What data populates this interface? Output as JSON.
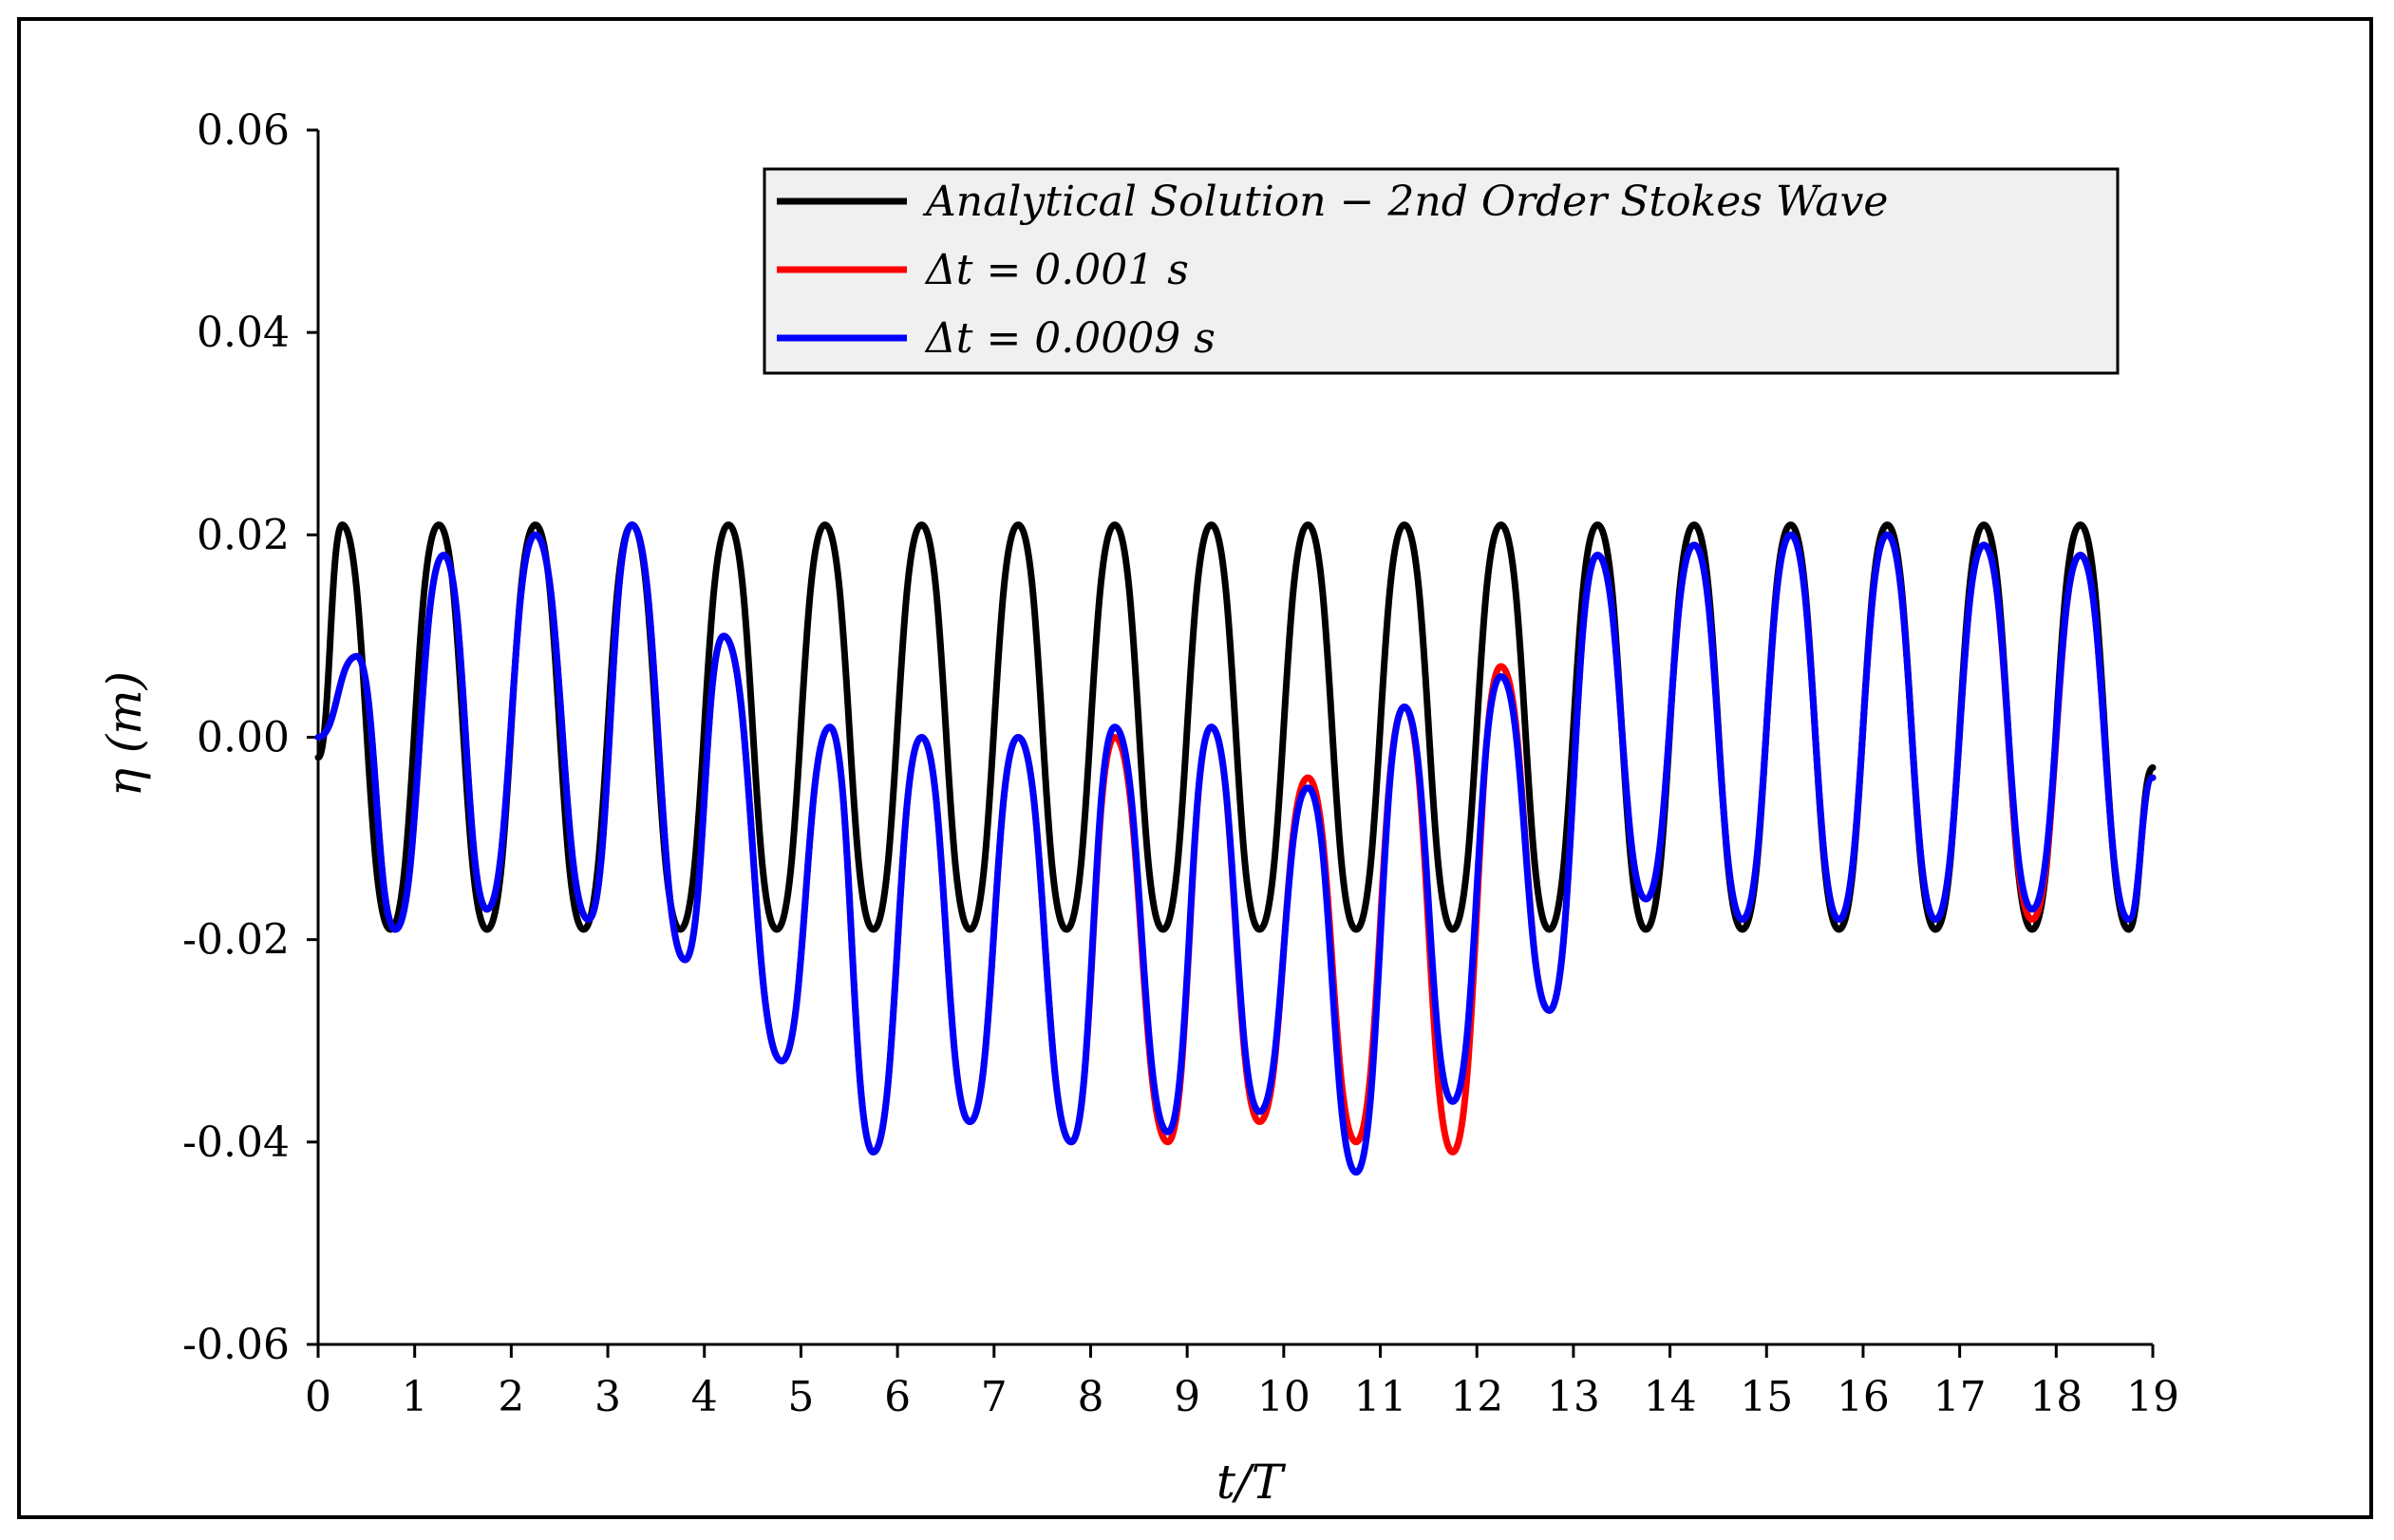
{
  "chart_data": {
    "type": "line",
    "title": "",
    "xlabel": "t/T",
    "ylabel": "η (m)",
    "xlim": [
      0,
      19
    ],
    "ylim": [
      -0.06,
      0.06
    ],
    "xticks": [
      0,
      1,
      2,
      3,
      4,
      5,
      6,
      7,
      8,
      9,
      10,
      11,
      12,
      13,
      14,
      15,
      16,
      17,
      18,
      19
    ],
    "xtick_labels": [
      "0",
      "1",
      "2",
      "3",
      "4",
      "5",
      "6",
      "7",
      "8",
      "9",
      "10",
      "11",
      "12",
      "13",
      "14",
      "15",
      "16",
      "17",
      "18",
      "19"
    ],
    "yticks": [
      -0.06,
      -0.04,
      -0.02,
      0.0,
      0.02,
      0.04,
      0.06
    ],
    "ytick_labels": [
      "-0.06",
      "-0.04",
      "-0.02",
      "0.00",
      "0.02",
      "0.04",
      "0.06"
    ],
    "grid": false,
    "legend_position": "top-right",
    "series": [
      {
        "name": "Analytical Solution − 2nd Order Stokes Wave",
        "color": "#000000",
        "x": [
          0,
          0.25,
          0.75,
          1.25,
          1.75,
          2.25,
          2.75,
          3.25,
          3.75,
          4.25,
          4.75,
          5.25,
          5.75,
          6.25,
          6.75,
          7.25,
          7.75,
          8.25,
          8.75,
          9.25,
          9.75,
          10.25,
          10.75,
          11.25,
          11.75,
          12.25,
          12.75,
          13.25,
          13.75,
          14.25,
          14.75,
          15.25,
          15.75,
          16.25,
          16.75,
          17.25,
          17.75,
          18.25,
          18.75,
          19
        ],
        "y": [
          -0.002,
          0.021,
          -0.019,
          0.021,
          -0.019,
          0.021,
          -0.019,
          0.021,
          -0.019,
          0.021,
          -0.019,
          0.021,
          -0.019,
          0.021,
          -0.019,
          0.021,
          -0.019,
          0.021,
          -0.019,
          0.021,
          -0.019,
          0.021,
          -0.019,
          0.021,
          -0.019,
          0.021,
          -0.019,
          0.021,
          -0.019,
          0.021,
          -0.019,
          0.021,
          -0.019,
          0.021,
          -0.019,
          0.021,
          -0.019,
          0.021,
          -0.019,
          -0.003
        ]
      },
      {
        "name": "Δt = 0.001 s",
        "color": "#ff0000",
        "x": [
          0,
          0.4,
          0.8,
          1.3,
          1.75,
          2.25,
          2.8,
          3.25,
          3.8,
          4.2,
          4.8,
          5.3,
          5.75,
          6.25,
          6.75,
          7.25,
          7.8,
          8.25,
          8.8,
          9.25,
          9.75,
          10.25,
          10.75,
          11.25,
          11.75,
          12.25,
          12.75,
          13.25,
          13.75,
          14.25,
          14.75,
          15.25,
          15.75,
          16.25,
          16.75,
          17.25,
          17.75,
          18.25,
          18.75,
          19
        ],
        "y": [
          0.0,
          0.008,
          -0.019,
          0.018,
          -0.017,
          0.02,
          -0.018,
          0.021,
          -0.022,
          0.01,
          -0.032,
          0.001,
          -0.041,
          0.0,
          -0.038,
          0.0,
          -0.04,
          0.0,
          -0.04,
          0.001,
          -0.038,
          -0.004,
          -0.04,
          0.003,
          -0.041,
          0.007,
          -0.027,
          0.018,
          -0.016,
          0.019,
          -0.018,
          0.02,
          -0.018,
          0.02,
          -0.018,
          0.019,
          -0.018,
          0.018,
          -0.018,
          -0.004
        ]
      },
      {
        "name": "Δt = 0.0009 s",
        "color": "#0000ff",
        "x": [
          0,
          0.4,
          0.8,
          1.3,
          1.75,
          2.25,
          2.8,
          3.25,
          3.8,
          4.2,
          4.8,
          5.3,
          5.75,
          6.25,
          6.75,
          7.25,
          7.8,
          8.25,
          8.8,
          9.25,
          9.75,
          10.25,
          10.75,
          11.25,
          11.75,
          12.25,
          12.75,
          13.25,
          13.75,
          14.25,
          14.75,
          15.25,
          15.75,
          16.25,
          16.75,
          17.25,
          17.75,
          18.25,
          18.75,
          19
        ],
        "y": [
          0.0,
          0.008,
          -0.019,
          0.018,
          -0.017,
          0.02,
          -0.018,
          0.021,
          -0.022,
          0.01,
          -0.032,
          0.001,
          -0.041,
          0.0,
          -0.038,
          0.0,
          -0.04,
          0.001,
          -0.039,
          0.001,
          -0.037,
          -0.005,
          -0.043,
          0.003,
          -0.036,
          0.006,
          -0.027,
          0.018,
          -0.016,
          0.019,
          -0.018,
          0.02,
          -0.018,
          0.02,
          -0.018,
          0.019,
          -0.017,
          0.018,
          -0.018,
          -0.004
        ]
      }
    ],
    "legend": [
      {
        "label": "Analytical Solution − 2nd Order Stokes Wave",
        "color": "#000000"
      },
      {
        "label": "Δt = 0.001 s",
        "color": "#ff0000"
      },
      {
        "label": "Δt = 0.0009 s",
        "color": "#0000ff"
      }
    ]
  }
}
